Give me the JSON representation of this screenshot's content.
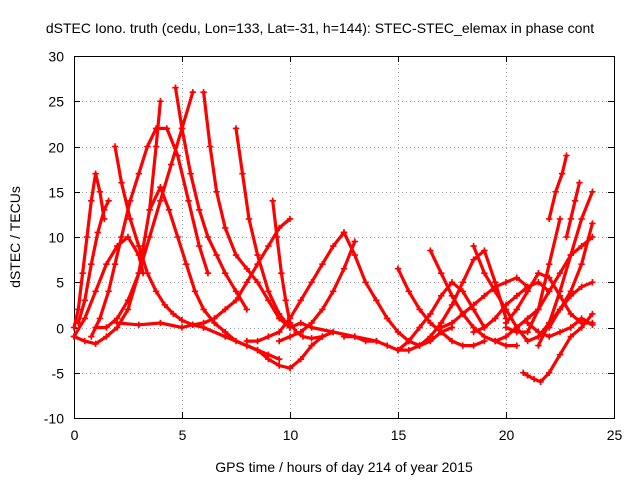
{
  "chart_data": {
    "type": "scatter",
    "title": "dSTEC Iono. truth (cedu, Lon=133, Lat=-31, h=144): STEC-STEC_elemax in phase cont",
    "xlabel": "GPS time / hours of day 214 of year 2015",
    "ylabel": "dSTEC  / TECUs",
    "xlim": [
      0,
      25
    ],
    "ylim": [
      -10,
      30
    ],
    "xticks": [
      0,
      5,
      10,
      15,
      20,
      25
    ],
    "yticks": [
      -10,
      -5,
      0,
      5,
      10,
      15,
      20,
      25,
      30
    ],
    "xtick_labels": [
      "0",
      "5",
      "10",
      "15",
      "20",
      "25"
    ],
    "ytick_labels": [
      "-10",
      "-5",
      "0",
      "5",
      "10",
      "15",
      "20",
      "25",
      "30"
    ],
    "grid": true,
    "legend": "none",
    "marker": "plus",
    "color": "#ff0000",
    "series": [
      {
        "x": [
          0.0,
          0.2,
          0.4,
          0.6,
          0.8,
          1.0,
          1.2,
          1.4
        ],
        "y": [
          0.0,
          2.0,
          6.0,
          10.0,
          14.0,
          17.0,
          15.0,
          12.0
        ]
      },
      {
        "x": [
          0.2,
          0.5,
          0.8,
          1.1,
          1.4,
          1.6
        ],
        "y": [
          0.5,
          3.0,
          7.0,
          10.5,
          13.0,
          14.0
        ]
      },
      {
        "x": [
          0.0,
          0.5,
          1.0,
          1.5,
          2.0,
          2.5,
          3.0,
          3.2
        ],
        "y": [
          -1.0,
          1.0,
          4.0,
          7.0,
          9.0,
          10.0,
          8.0,
          6.0
        ]
      },
      {
        "x": [
          0.0,
          0.5,
          1.0,
          1.5,
          2.0,
          2.5,
          3.0,
          3.5,
          3.8,
          4.0
        ],
        "y": [
          -1.0,
          -1.5,
          -1.8,
          -1.0,
          0.0,
          2.0,
          6.0,
          13.0,
          20.0,
          25.0
        ]
      },
      {
        "x": [
          0.8,
          1.2,
          1.6,
          1.9,
          2.2,
          2.6,
          3.0,
          3.4,
          3.8,
          4.3,
          4.8,
          5.3,
          5.8,
          6.2
        ],
        "y": [
          -1.0,
          1.0,
          4.0,
          7.0,
          10.0,
          14.0,
          17.0,
          20.0,
          22.0,
          22.0,
          19.0,
          14.0,
          9.0,
          6.0
        ]
      },
      {
        "x": [
          1.9,
          2.2,
          2.6,
          3.0,
          3.4,
          3.8,
          4.2,
          4.6,
          5.0,
          5.5,
          6.0
        ],
        "y": [
          20.0,
          16.0,
          12.0,
          9.0,
          6.0,
          4.0,
          2.5,
          1.5,
          0.8,
          0.3,
          0.0
        ]
      },
      {
        "x": [
          1.0,
          1.5,
          2.0,
          2.5,
          3.0,
          3.5,
          4.0,
          4.5,
          5.0,
          5.5
        ],
        "y": [
          0.0,
          0.0,
          1.0,
          3.0,
          6.0,
          10.0,
          14.0,
          18.0,
          22.0,
          26.0
        ]
      },
      {
        "x": [
          4.7,
          5.0,
          5.4,
          5.8,
          6.2,
          6.6,
          7.0,
          7.5,
          8.0
        ],
        "y": [
          26.5,
          22.0,
          17.0,
          13.0,
          10.0,
          8.0,
          6.0,
          4.0,
          2.0
        ]
      },
      {
        "x": [
          3.5,
          4.0,
          4.4,
          4.8,
          5.2,
          5.6,
          6.0,
          6.5,
          7.0,
          7.5,
          8.0,
          8.5,
          9.0,
          9.5
        ],
        "y": [
          13.0,
          15.5,
          13.0,
          10.0,
          7.0,
          4.0,
          2.0,
          0.5,
          -0.5,
          -1.5,
          -2.0,
          -2.5,
          -3.0,
          -3.5
        ]
      },
      {
        "x": [
          6.0,
          6.3,
          6.6,
          7.0,
          7.5,
          8.0,
          8.5,
          9.0,
          9.5,
          10.0
        ],
        "y": [
          26.0,
          20.0,
          15.0,
          11.0,
          8.0,
          6.5,
          5.0,
          3.0,
          1.0,
          0.0
        ]
      },
      {
        "x": [
          7.5,
          7.8,
          8.1,
          8.5,
          9.0,
          9.5,
          10.0,
          10.5,
          11.0,
          12.0,
          13.0,
          14.0
        ],
        "y": [
          22.0,
          17.0,
          12.0,
          8.0,
          4.0,
          1.5,
          0.0,
          0.5,
          0.0,
          -0.5,
          -1.0,
          -1.5
        ]
      },
      {
        "x": [
          2.0,
          3.0,
          4.0,
          5.0,
          5.5,
          6.0,
          6.5,
          7.0,
          7.5,
          8.0,
          8.5,
          9.0,
          9.5,
          10.0
        ],
        "y": [
          0.5,
          0.3,
          0.5,
          0.0,
          0.3,
          0.5,
          1.0,
          2.0,
          3.0,
          5.0,
          7.0,
          9.0,
          11.0,
          12.0
        ]
      },
      {
        "x": [
          9.2,
          9.4,
          9.6,
          9.8,
          10.0,
          10.3,
          10.6,
          11.0,
          11.5,
          12.0
        ],
        "y": [
          14.0,
          10.0,
          6.0,
          3.0,
          0.5,
          -0.5,
          -1.0,
          -1.2,
          -1.0,
          -0.5
        ]
      },
      {
        "x": [
          6.0,
          7.0,
          8.0,
          8.5,
          9.0,
          9.5,
          10.0,
          10.5,
          11.0,
          11.5
        ],
        "y": [
          0.0,
          -1.0,
          -2.0,
          -2.5,
          -3.5,
          -4.2,
          -4.5,
          -3.5,
          -2.0,
          -1.0
        ]
      },
      {
        "x": [
          8.0,
          8.5,
          9.0,
          9.5,
          10.0,
          10.5,
          11.0,
          11.5,
          12.0,
          12.5
        ],
        "y": [
          -1.5,
          -1.5,
          -1.0,
          -0.5,
          1.0,
          3.0,
          5.0,
          7.0,
          9.0,
          10.5
        ]
      },
      {
        "x": [
          9.5,
          10.0,
          10.5,
          11.0,
          11.5,
          12.0,
          12.5,
          13.0
        ],
        "y": [
          -1.5,
          -1.0,
          -0.5,
          0.5,
          2.0,
          4.0,
          6.5,
          9.5
        ]
      },
      {
        "x": [
          12.5,
          13.0,
          13.5,
          14.0,
          14.5,
          15.0,
          15.5,
          16.0
        ],
        "y": [
          10.5,
          8.0,
          5.0,
          3.0,
          1.0,
          -0.5,
          -1.5,
          -2.0
        ]
      },
      {
        "x": [
          12.5,
          13.0,
          13.5,
          14.0,
          14.5,
          15.0,
          15.5,
          16.0,
          16.5,
          17.0,
          17.5
        ],
        "y": [
          -1.0,
          -1.0,
          -1.5,
          -1.5,
          -2.0,
          -2.5,
          -2.5,
          -2.0,
          -1.5,
          -0.5,
          0.0
        ]
      },
      {
        "x": [
          15.0,
          15.5,
          16.0,
          16.5,
          17.0,
          17.5,
          18.0,
          18.5,
          19.0
        ],
        "y": [
          -2.5,
          -1.5,
          0.0,
          1.5,
          3.5,
          5.0,
          4.0,
          2.0,
          0.0
        ]
      },
      {
        "x": [
          15.0,
          15.5,
          16.0,
          16.5,
          17.0,
          17.5,
          18.0,
          18.5,
          19.0
        ],
        "y": [
          6.5,
          4.0,
          2.0,
          0.5,
          -0.5,
          -1.5,
          -2.0,
          -2.0,
          -1.5
        ]
      },
      {
        "x": [
          16.0,
          16.5,
          17.0,
          17.5,
          18.0,
          18.5,
          19.0,
          19.5,
          20.0
        ],
        "y": [
          -2.0,
          -1.0,
          0.5,
          2.5,
          5.0,
          7.5,
          8.5,
          5.0,
          1.0
        ]
      },
      {
        "x": [
          16.5,
          17.0,
          17.5,
          18.0,
          18.5,
          19.0,
          19.5,
          20.0,
          20.5
        ],
        "y": [
          8.5,
          6.0,
          3.5,
          1.5,
          0.0,
          -1.0,
          -1.5,
          -2.0,
          -2.0
        ]
      },
      {
        "x": [
          17.0,
          17.5,
          18.0,
          18.5,
          19.0,
          19.5,
          20.0,
          20.5,
          21.0
        ],
        "y": [
          0.0,
          0.5,
          1.5,
          2.5,
          3.5,
          4.5,
          5.0,
          5.5,
          4.5
        ]
      },
      {
        "x": [
          18.5,
          19.0,
          19.5,
          20.0,
          20.5,
          21.0,
          21.5,
          22.0
        ],
        "y": [
          -0.5,
          0.0,
          1.0,
          2.5,
          3.5,
          4.5,
          5.0,
          4.0
        ]
      },
      {
        "x": [
          20.0,
          20.5,
          21.0,
          21.5,
          22.0,
          22.5,
          23.0,
          23.5,
          24.0
        ],
        "y": [
          0.5,
          2.0,
          4.0,
          6.0,
          5.5,
          3.5,
          1.5,
          0.5,
          0.5
        ]
      },
      {
        "x": [
          20.0,
          20.5,
          21.0,
          21.5,
          22.0,
          22.5
        ],
        "y": [
          0.0,
          -0.5,
          -0.5,
          2.0,
          7.0,
          12.0
        ]
      },
      {
        "x": [
          21.5,
          22.0,
          22.5,
          23.0,
          23.5,
          24.0
        ],
        "y": [
          -2.0,
          0.5,
          4.0,
          8.0,
          12.0,
          15.0
        ]
      },
      {
        "x": [
          22.0,
          22.3,
          22.6,
          22.8
        ],
        "y": [
          12.0,
          15.0,
          17.0,
          19.0
        ]
      },
      {
        "x": [
          22.8,
          23.0,
          23.2,
          23.4
        ],
        "y": [
          10.0,
          12.0,
          14.0,
          16.0
        ]
      },
      {
        "x": [
          22.0,
          22.5,
          23.0,
          23.5,
          24.0
        ],
        "y": [
          0.0,
          2.0,
          4.0,
          7.0,
          11.5
        ]
      },
      {
        "x": [
          20.8,
          21.0,
          21.3,
          21.6,
          22.0,
          22.5,
          23.0,
          23.5,
          24.0
        ],
        "y": [
          -5.0,
          -5.3,
          -5.7,
          -6.0,
          -5.0,
          -3.0,
          -1.0,
          0.0,
          1.5
        ]
      },
      {
        "x": [
          21.0,
          21.5,
          22.0,
          22.5,
          23.0,
          23.5,
          24.0
        ],
        "y": [
          0.5,
          -0.5,
          -1.0,
          -0.5,
          0.0,
          1.0,
          0.3
        ]
      },
      {
        "x": [
          18.5,
          19.0,
          19.5,
          20.0,
          20.5,
          21.0,
          21.5,
          22.0,
          22.5,
          23.0,
          23.5,
          24.0
        ],
        "y": [
          9.0,
          6.0,
          4.0,
          2.0,
          0.0,
          -1.5,
          -1.0,
          0.5,
          2.0,
          3.5,
          4.5,
          5.0
        ]
      },
      {
        "x": [
          19.5,
          20.0,
          20.5,
          21.0,
          21.5,
          22.0,
          22.5,
          23.0,
          23.5,
          24.0
        ],
        "y": [
          -1.5,
          -1.0,
          0.0,
          1.0,
          2.0,
          4.0,
          6.0,
          8.0,
          9.0,
          10.0
        ]
      }
    ]
  }
}
